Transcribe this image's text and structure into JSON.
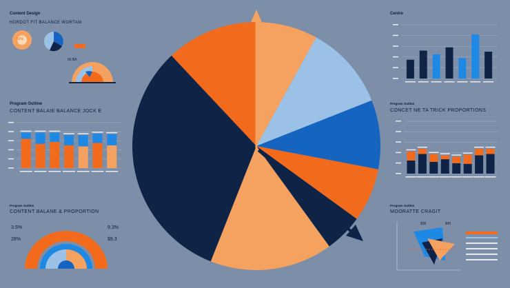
{
  "colors": {
    "background": "#7d8ea8",
    "navy": "#0f2347",
    "orange": "#f26a1b",
    "peach": "#f5a15f",
    "light_blue": "#9bc2e6",
    "blue": "#1565c0",
    "bright_blue": "#1e88e5"
  },
  "top_left": {
    "label": "Content Design",
    "heading": "HORDOT FIT BALANCE WORTAM",
    "donut_percent": "50%",
    "button": "",
    "mini_label": "05 BA"
  },
  "mid_left": {
    "label": "Program Outline",
    "heading": "CONTENT BALAIE BALANCE JOCK E"
  },
  "bottom_left": {
    "label": "Program Outline",
    "heading": "CONTENT BALANE & PROPORTION",
    "left_value_top": "3.5%",
    "left_value_bottom": "28%",
    "right_value_top": "9.3%",
    "right_value_bottom": "$9.3"
  },
  "top_right": {
    "label": "Centre"
  },
  "mid_right": {
    "label": "Program Outline",
    "heading": "CONCET NE TA TRICK PROPORTIONS"
  },
  "bottom_right": {
    "label": "Program Outline",
    "heading": "MOORATTE CRAGIT",
    "callout_a": "$35",
    "callout_b": "$45"
  },
  "chart_data": [
    {
      "type": "pie",
      "title": "",
      "slices": [
        {
          "label": "",
          "value": 12,
          "color": "#f26a1b"
        },
        {
          "label": "",
          "value": 8,
          "color": "#f5a15f"
        },
        {
          "label": "",
          "value": 11,
          "color": "#9bc2e6"
        },
        {
          "label": "",
          "value": 9,
          "color": "#1565c0"
        },
        {
          "label": "",
          "value": 7,
          "color": "#f26a1b"
        },
        {
          "label": "",
          "value": 5,
          "color": "#0f2347"
        },
        {
          "label": "",
          "value": 16,
          "color": "#f5a15f"
        },
        {
          "label": "",
          "value": 32,
          "color": "#0f2347"
        }
      ]
    },
    {
      "type": "bar",
      "title": "",
      "ylim": [
        0,
        100
      ],
      "categories": [
        "",
        "",
        "",
        "",
        "",
        "",
        ""
      ],
      "values": [
        35,
        52,
        45,
        58,
        38,
        82,
        50
      ],
      "colors": [
        "#0f2347",
        "#0f2347",
        "#1e88e5",
        "#0f2347",
        "#1e88e5",
        "#1e88e5",
        "#0f2347"
      ]
    },
    {
      "type": "bar",
      "title": "",
      "ylim": [
        0,
        90
      ],
      "categories": [
        "",
        "",
        "",
        "",
        "",
        "",
        ""
      ],
      "series": [
        {
          "values": [
            58,
            48,
            52,
            45,
            43,
            50,
            45
          ],
          "color": "#f26a1b"
        },
        {
          "values": [
            12,
            22,
            18,
            20,
            22,
            18,
            22
          ],
          "color": "#1e88e5"
        }
      ]
    },
    {
      "type": "bar",
      "title": "",
      "ylim": [
        0,
        80
      ],
      "categories": [
        "",
        "",
        "",
        "",
        "",
        "",
        "",
        ""
      ],
      "series": [
        {
          "values": [
            20,
            30,
            18,
            22,
            16,
            15,
            28,
            30
          ],
          "color": "#0f2347"
        },
        {
          "values": [
            14,
            8,
            12,
            6,
            10,
            14,
            10,
            8
          ],
          "color": "#f26a1b"
        }
      ]
    }
  ]
}
